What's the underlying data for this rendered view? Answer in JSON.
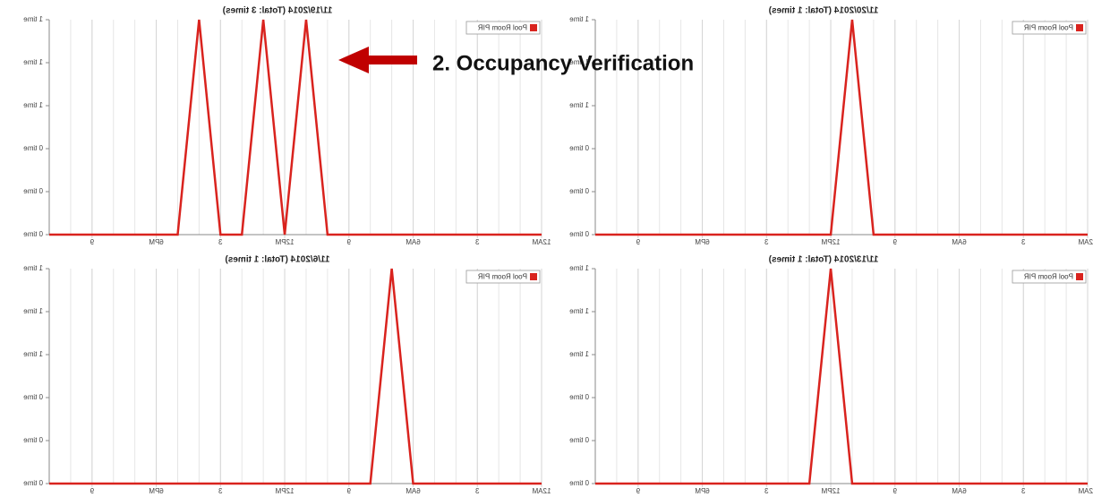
{
  "chart_data": [
    {
      "type": "line",
      "title": "11/19/2014 (Total: 3 times)",
      "x": [
        0,
        1,
        2,
        3,
        4,
        5,
        6,
        7,
        8,
        9,
        10,
        11,
        12,
        13,
        14,
        15,
        16,
        17,
        18,
        19,
        20,
        21,
        22,
        23
      ],
      "series": [
        {
          "name": "Pool Room PIR",
          "color": "#d9231e",
          "values": [
            0,
            0,
            0,
            0,
            0,
            0,
            0,
            0,
            0,
            0,
            0,
            1,
            0,
            1,
            0,
            0,
            1,
            0,
            0,
            0,
            0,
            0,
            0,
            0
          ]
        }
      ],
      "xlim": [
        0,
        23
      ],
      "xticks": [
        {
          "value": 0,
          "label": "12AM"
        },
        3,
        {
          "value": 6,
          "label": "6AM"
        },
        9,
        {
          "value": 12,
          "label": "12PM"
        },
        {
          "value": 15,
          "label": "3"
        },
        {
          "value": 18,
          "label": "6PM"
        },
        {
          "value": 21,
          "label": "9"
        }
      ],
      "ylim": [
        0,
        1
      ],
      "yticks": [
        {
          "value": 0,
          "label": "0 time"
        },
        {
          "value": 0.2,
          "label": "0 time"
        },
        {
          "value": 0.4,
          "label": "0 time"
        },
        {
          "value": 0.6,
          "label": "1 time"
        },
        {
          "value": 0.8,
          "label": "1 time"
        },
        {
          "value": 1,
          "label": "1 time"
        }
      ]
    },
    {
      "type": "line",
      "title": "11/20/2014 (Total: 1 times)",
      "x": [
        0,
        1,
        2,
        3,
        4,
        5,
        6,
        7,
        8,
        9,
        10,
        11,
        12,
        13,
        14,
        15,
        16,
        17,
        18,
        19,
        20,
        21,
        22,
        23
      ],
      "series": [
        {
          "name": "Pool Room PIR",
          "color": "#d9231e",
          "values": [
            0,
            0,
            0,
            0,
            0,
            0,
            0,
            0,
            0,
            0,
            0,
            1,
            0,
            0,
            0,
            0,
            0,
            0,
            0,
            0,
            0,
            0,
            0,
            0
          ]
        }
      ],
      "xlim": [
        0,
        23
      ],
      "xticks": [
        {
          "value": 0,
          "label": "12AM"
        },
        3,
        {
          "value": 6,
          "label": "6AM"
        },
        9,
        {
          "value": 12,
          "label": "12PM"
        },
        {
          "value": 15,
          "label": "3"
        },
        {
          "value": 18,
          "label": "6PM"
        },
        {
          "value": 21,
          "label": "9"
        }
      ],
      "ylim": [
        0,
        1
      ],
      "yticks": [
        {
          "value": 0,
          "label": "0 time"
        },
        {
          "value": 0.2,
          "label": "0 time"
        },
        {
          "value": 0.4,
          "label": "0 time"
        },
        {
          "value": 0.6,
          "label": "1 time"
        },
        {
          "value": 0.8,
          "label": "1 time"
        },
        {
          "value": 1,
          "label": "1 time"
        }
      ]
    },
    {
      "type": "line",
      "title": "11/6/2014 (Total: 1 times)",
      "x": [
        0,
        1,
        2,
        3,
        4,
        5,
        6,
        7,
        8,
        9,
        10,
        11,
        12,
        13,
        14,
        15,
        16,
        17,
        18,
        19,
        20,
        21,
        22,
        23
      ],
      "series": [
        {
          "name": "Pool Room PIR",
          "color": "#d9231e",
          "values": [
            0,
            0,
            0,
            0,
            0,
            0,
            0,
            1,
            0,
            0,
            0,
            0,
            0,
            0,
            0,
            0,
            0,
            0,
            0,
            0,
            0,
            0,
            0,
            0
          ]
        }
      ],
      "xlim": [
        0,
        23
      ],
      "xticks": [
        {
          "value": 0,
          "label": "12AM"
        },
        3,
        {
          "value": 6,
          "label": "6AM"
        },
        9,
        {
          "value": 12,
          "label": "12PM"
        },
        {
          "value": 15,
          "label": "3"
        },
        {
          "value": 18,
          "label": "6PM"
        },
        {
          "value": 21,
          "label": "9"
        }
      ],
      "ylim": [
        0,
        1
      ],
      "yticks": [
        {
          "value": 0,
          "label": "0 time"
        },
        {
          "value": 0.2,
          "label": "0 time"
        },
        {
          "value": 0.4,
          "label": "0 time"
        },
        {
          "value": 0.6,
          "label": "1 time"
        },
        {
          "value": 0.8,
          "label": "1 time"
        },
        {
          "value": 1,
          "label": "1 time"
        }
      ]
    },
    {
      "type": "line",
      "title": "11/13/2014 (Total: 1 times)",
      "x": [
        0,
        1,
        2,
        3,
        4,
        5,
        6,
        7,
        8,
        9,
        10,
        11,
        12,
        13,
        14,
        15,
        16,
        17,
        18,
        19,
        20,
        21,
        22,
        23
      ],
      "series": [
        {
          "name": "Pool Room PIR",
          "color": "#d9231e",
          "values": [
            0,
            0,
            0,
            0,
            0,
            0,
            0,
            0,
            0,
            0,
            0,
            0,
            1,
            0,
            0,
            0,
            0,
            0,
            0,
            0,
            0,
            0,
            0,
            0
          ]
        }
      ],
      "xlim": [
        0,
        23
      ],
      "xticks": [
        {
          "value": 0,
          "label": "12AM"
        },
        3,
        {
          "value": 6,
          "label": "6AM"
        },
        9,
        {
          "value": 12,
          "label": "12PM"
        },
        {
          "value": 15,
          "label": "3"
        },
        {
          "value": 18,
          "label": "6PM"
        },
        {
          "value": 21,
          "label": "9"
        }
      ],
      "ylim": [
        0,
        1
      ],
      "yticks": [
        {
          "value": 0,
          "label": "0 time"
        },
        {
          "value": 0.2,
          "label": "0 time"
        },
        {
          "value": 0.4,
          "label": "0 time"
        },
        {
          "value": 0.6,
          "label": "1 time"
        },
        {
          "value": 0.8,
          "label": "1 time"
        },
        {
          "value": 1,
          "label": "1 time"
        }
      ]
    }
  ],
  "annotation": {
    "text": "2. Occupancy Verification"
  }
}
